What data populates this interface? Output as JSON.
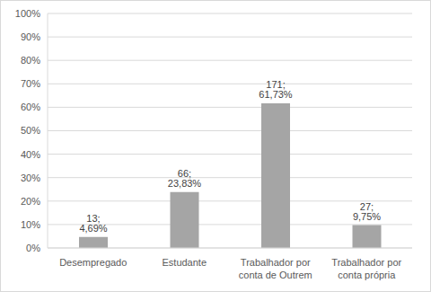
{
  "chart_data": {
    "type": "bar",
    "categories": [
      "Desempregado",
      "Estudante",
      "Trabalhador por conta de Outrem",
      "Trabalhador por conta própria"
    ],
    "values": [
      4.69,
      23.83,
      61.73,
      9.75
    ],
    "value_labels": [
      "13; 4,69%",
      "66; 23,83%",
      "171; 61,73%",
      "27; 9,75%"
    ],
    "data_labels": true,
    "color": "#a5a5a5",
    "ylim": [
      0,
      100
    ],
    "yticks": [
      {
        "value": 0,
        "label": "0%"
      },
      {
        "value": 10,
        "label": "10%"
      },
      {
        "value": 20,
        "label": "20%"
      },
      {
        "value": 30,
        "label": "30%"
      },
      {
        "value": 40,
        "label": "40%"
      },
      {
        "value": 50,
        "label": "50%"
      },
      {
        "value": 60,
        "label": "60%"
      },
      {
        "value": 70,
        "label": "70%"
      },
      {
        "value": 80,
        "label": "80%"
      },
      {
        "value": 90,
        "label": "90%"
      },
      {
        "value": 100,
        "label": "100%"
      }
    ],
    "grid": true
  }
}
